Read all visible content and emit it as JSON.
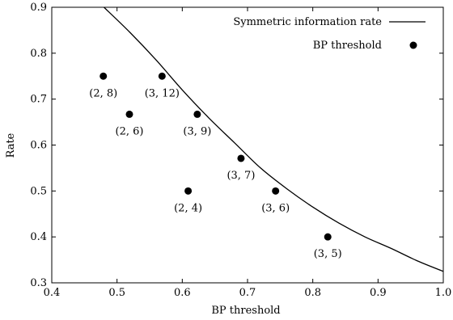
{
  "chart_data": {
    "type": "scatter",
    "xlabel": "BP threshold",
    "ylabel": "Rate",
    "xlim": [
      0.4,
      1.0
    ],
    "ylim": [
      0.3,
      0.9
    ],
    "xticks": [
      "0.4",
      "0.5",
      "0.6",
      "0.7",
      "0.8",
      "0.9",
      "1.0"
    ],
    "yticks": [
      "0.3",
      "0.4",
      "0.5",
      "0.6",
      "0.7",
      "0.8",
      "0.9"
    ],
    "grid": false,
    "legend_position": "top-right",
    "series": [
      {
        "name": "Symmetric information rate",
        "type": "line",
        "color": "#000000",
        "x": [
          0.48,
          0.52,
          0.56,
          0.6,
          0.64,
          0.68,
          0.72,
          0.76,
          0.8,
          0.84,
          0.88,
          0.92,
          0.96,
          1.0
        ],
        "y": [
          0.9,
          0.845,
          0.785,
          0.72,
          0.66,
          0.605,
          0.55,
          0.505,
          0.465,
          0.43,
          0.4,
          0.375,
          0.348,
          0.325
        ]
      },
      {
        "name": "BP threshold",
        "type": "scatter",
        "color": "#000000",
        "points": [
          {
            "x": 0.479,
            "y": 0.75,
            "label": "(2, 8)"
          },
          {
            "x": 0.519,
            "y": 0.667,
            "label": "(2, 6)"
          },
          {
            "x": 0.569,
            "y": 0.75,
            "label": "(3, 12)"
          },
          {
            "x": 0.623,
            "y": 0.667,
            "label": "(3, 9)"
          },
          {
            "x": 0.609,
            "y": 0.5,
            "label": "(2, 4)"
          },
          {
            "x": 0.69,
            "y": 0.571,
            "label": "(3, 7)"
          },
          {
            "x": 0.743,
            "y": 0.5,
            "label": "(3, 6)"
          },
          {
            "x": 0.823,
            "y": 0.4,
            "label": "(3, 5)"
          }
        ]
      }
    ]
  }
}
